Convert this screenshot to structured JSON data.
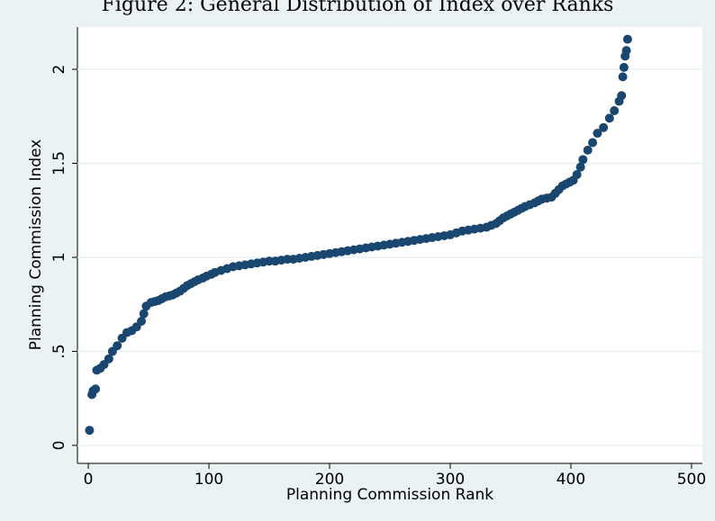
{
  "chart_data": {
    "type": "scatter",
    "title": "Figure 2: General Distribution of Index over Ranks",
    "x_label": "Planning Commission Rank",
    "y_label": "Planning Commission Index",
    "color": "#1a476f",
    "x": [
      1,
      3,
      4,
      6,
      7,
      10,
      13,
      17,
      20,
      24,
      28,
      32,
      36,
      40,
      44,
      46,
      48,
      52,
      55,
      58,
      61,
      64,
      67,
      70,
      73,
      76,
      79,
      82,
      85,
      88,
      91,
      95,
      98,
      102,
      105,
      110,
      115,
      120,
      125,
      130,
      135,
      140,
      145,
      150,
      155,
      160,
      165,
      170,
      175,
      180,
      185,
      190,
      195,
      200,
      205,
      210,
      215,
      220,
      225,
      230,
      235,
      240,
      245,
      250,
      255,
      260,
      265,
      270,
      275,
      280,
      285,
      290,
      295,
      300,
      305,
      310,
      315,
      320,
      325,
      330,
      334,
      338,
      341,
      344,
      347,
      350,
      353,
      356,
      359,
      362,
      366,
      370,
      373,
      376,
      380,
      384,
      387,
      390,
      393,
      396,
      399,
      402,
      405,
      408,
      410,
      414,
      418,
      422,
      427,
      432,
      436,
      440,
      442,
      443,
      444,
      445,
      446,
      447
    ],
    "y": [
      0.08,
      0.27,
      0.29,
      0.3,
      0.4,
      0.41,
      0.43,
      0.46,
      0.5,
      0.53,
      0.57,
      0.6,
      0.61,
      0.63,
      0.66,
      0.7,
      0.74,
      0.76,
      0.765,
      0.77,
      0.78,
      0.79,
      0.795,
      0.8,
      0.81,
      0.82,
      0.835,
      0.85,
      0.86,
      0.87,
      0.88,
      0.89,
      0.9,
      0.91,
      0.92,
      0.93,
      0.94,
      0.95,
      0.955,
      0.96,
      0.965,
      0.97,
      0.975,
      0.98,
      0.98,
      0.985,
      0.99,
      0.99,
      0.995,
      1.0,
      1.005,
      1.01,
      1.015,
      1.02,
      1.025,
      1.03,
      1.035,
      1.04,
      1.045,
      1.05,
      1.055,
      1.06,
      1.065,
      1.07,
      1.075,
      1.08,
      1.085,
      1.09,
      1.095,
      1.1,
      1.105,
      1.11,
      1.115,
      1.12,
      1.13,
      1.14,
      1.145,
      1.15,
      1.155,
      1.16,
      1.17,
      1.18,
      1.195,
      1.21,
      1.22,
      1.23,
      1.24,
      1.25,
      1.26,
      1.27,
      1.28,
      1.29,
      1.3,
      1.31,
      1.315,
      1.32,
      1.34,
      1.36,
      1.38,
      1.39,
      1.4,
      1.41,
      1.44,
      1.48,
      1.52,
      1.57,
      1.61,
      1.66,
      1.69,
      1.74,
      1.78,
      1.83,
      1.86,
      1.96,
      2.01,
      2.07,
      2.1,
      2.16
    ],
    "xlim": [
      -9,
      509
    ],
    "ylim": [
      -0.096,
      2.225
    ],
    "xticks": [
      0,
      100,
      200,
      300,
      400,
      500
    ],
    "yticks": [
      0,
      {
        "value": 0.5,
        "label": ".5"
      },
      1,
      1.5,
      2
    ],
    "grid": true
  }
}
